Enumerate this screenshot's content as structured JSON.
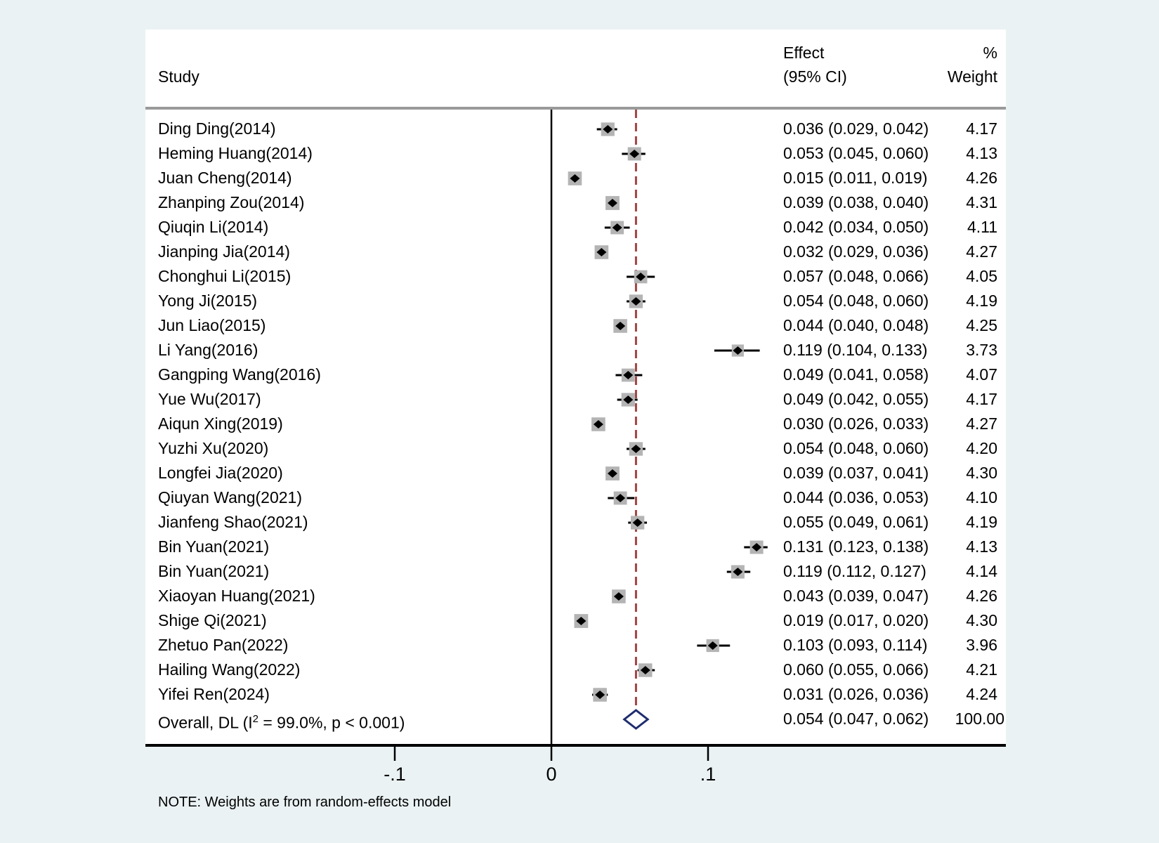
{
  "page": {
    "background": "#eaf2f3",
    "panel_background": "#ffffff"
  },
  "header": {
    "study": "Study",
    "effect_line1": "Effect",
    "effect_line2": "(95% CI)",
    "percent": "%",
    "weight": "Weight"
  },
  "note": "NOTE: Weights are from random-effects model",
  "chart_data": {
    "type": "forest",
    "title": "",
    "xlabel": "",
    "xlim": [
      -0.26,
      0.29
    ],
    "zero_line_value": 0,
    "reference_dashed_value": 0.054,
    "axis_ticks": [
      {
        "label": "-.1",
        "value": -0.1
      },
      {
        "label": "0",
        "value": 0
      },
      {
        "label": ".1",
        "value": 0.1
      }
    ],
    "colors": {
      "marker": "#000000",
      "weight_box": "#b4b4b4",
      "ci_line": "#000000",
      "dashed_line": "#a04545",
      "overall_diamond": "#1f2d6e",
      "axis": "#000000",
      "header_rule": "#9a9a9a",
      "text": "#000000"
    },
    "studies": [
      {
        "label": "Ding Ding(2014)",
        "effect": 0.036,
        "ci_lower": 0.029,
        "ci_upper": 0.042,
        "effect_label": "0.036 (0.029, 0.042)",
        "weight": 4.17,
        "weight_label": "4.17"
      },
      {
        "label": "Heming Huang(2014)",
        "effect": 0.053,
        "ci_lower": 0.045,
        "ci_upper": 0.06,
        "effect_label": "0.053 (0.045, 0.060)",
        "weight": 4.13,
        "weight_label": "4.13"
      },
      {
        "label": "Juan Cheng(2014)",
        "effect": 0.015,
        "ci_lower": 0.011,
        "ci_upper": 0.019,
        "effect_label": "0.015 (0.011, 0.019)",
        "weight": 4.26,
        "weight_label": "4.26"
      },
      {
        "label": "Zhanping Zou(2014)",
        "effect": 0.039,
        "ci_lower": 0.038,
        "ci_upper": 0.04,
        "effect_label": "0.039 (0.038, 0.040)",
        "weight": 4.31,
        "weight_label": "4.31"
      },
      {
        "label": "Qiuqin Li(2014)",
        "effect": 0.042,
        "ci_lower": 0.034,
        "ci_upper": 0.05,
        "effect_label": "0.042 (0.034, 0.050)",
        "weight": 4.11,
        "weight_label": "4.11"
      },
      {
        "label": "Jianping Jia(2014)",
        "effect": 0.032,
        "ci_lower": 0.029,
        "ci_upper": 0.036,
        "effect_label": "0.032 (0.029, 0.036)",
        "weight": 4.27,
        "weight_label": "4.27"
      },
      {
        "label": "Chonghui Li(2015)",
        "effect": 0.057,
        "ci_lower": 0.048,
        "ci_upper": 0.066,
        "effect_label": "0.057 (0.048, 0.066)",
        "weight": 4.05,
        "weight_label": "4.05"
      },
      {
        "label": "Yong Ji(2015)",
        "effect": 0.054,
        "ci_lower": 0.048,
        "ci_upper": 0.06,
        "effect_label": "0.054 (0.048, 0.060)",
        "weight": 4.19,
        "weight_label": "4.19"
      },
      {
        "label": "Jun Liao(2015)",
        "effect": 0.044,
        "ci_lower": 0.04,
        "ci_upper": 0.048,
        "effect_label": "0.044 (0.040, 0.048)",
        "weight": 4.25,
        "weight_label": "4.25"
      },
      {
        "label": "Li Yang(2016)",
        "effect": 0.119,
        "ci_lower": 0.104,
        "ci_upper": 0.133,
        "effect_label": "0.119 (0.104, 0.133)",
        "weight": 3.73,
        "weight_label": "3.73"
      },
      {
        "label": "Gangping Wang(2016)",
        "effect": 0.049,
        "ci_lower": 0.041,
        "ci_upper": 0.058,
        "effect_label": "0.049 (0.041, 0.058)",
        "weight": 4.07,
        "weight_label": "4.07"
      },
      {
        "label": "Yue Wu(2017)",
        "effect": 0.049,
        "ci_lower": 0.042,
        "ci_upper": 0.055,
        "effect_label": "0.049 (0.042, 0.055)",
        "weight": 4.17,
        "weight_label": "4.17"
      },
      {
        "label": "Aiqun Xing(2019)",
        "effect": 0.03,
        "ci_lower": 0.026,
        "ci_upper": 0.033,
        "effect_label": "0.030 (0.026, 0.033)",
        "weight": 4.27,
        "weight_label": "4.27"
      },
      {
        "label": "Yuzhi Xu(2020)",
        "effect": 0.054,
        "ci_lower": 0.048,
        "ci_upper": 0.06,
        "effect_label": "0.054 (0.048, 0.060)",
        "weight": 4.2,
        "weight_label": "4.20"
      },
      {
        "label": "Longfei Jia(2020)",
        "effect": 0.039,
        "ci_lower": 0.037,
        "ci_upper": 0.041,
        "effect_label": "0.039 (0.037, 0.041)",
        "weight": 4.3,
        "weight_label": "4.30"
      },
      {
        "label": "Qiuyan Wang(2021)",
        "effect": 0.044,
        "ci_lower": 0.036,
        "ci_upper": 0.053,
        "effect_label": "0.044 (0.036, 0.053)",
        "weight": 4.1,
        "weight_label": "4.10"
      },
      {
        "label": "Jianfeng Shao(2021)",
        "effect": 0.055,
        "ci_lower": 0.049,
        "ci_upper": 0.061,
        "effect_label": "0.055 (0.049, 0.061)",
        "weight": 4.19,
        "weight_label": "4.19"
      },
      {
        "label": "Bin Yuan(2021)",
        "effect": 0.131,
        "ci_lower": 0.123,
        "ci_upper": 0.138,
        "effect_label": "0.131 (0.123, 0.138)",
        "weight": 4.13,
        "weight_label": "4.13"
      },
      {
        "label": "Bin Yuan(2021)",
        "effect": 0.119,
        "ci_lower": 0.112,
        "ci_upper": 0.127,
        "effect_label": "0.119 (0.112, 0.127)",
        "weight": 4.14,
        "weight_label": "4.14"
      },
      {
        "label": "Xiaoyan Huang(2021)",
        "effect": 0.043,
        "ci_lower": 0.039,
        "ci_upper": 0.047,
        "effect_label": "0.043 (0.039, 0.047)",
        "weight": 4.26,
        "weight_label": "4.26"
      },
      {
        "label": "Shige Qi(2021)",
        "effect": 0.019,
        "ci_lower": 0.017,
        "ci_upper": 0.02,
        "effect_label": "0.019 (0.017, 0.020)",
        "weight": 4.3,
        "weight_label": "4.30"
      },
      {
        "label": "Zhetuo Pan(2022)",
        "effect": 0.103,
        "ci_lower": 0.093,
        "ci_upper": 0.114,
        "effect_label": "0.103 (0.093, 0.114)",
        "weight": 3.96,
        "weight_label": "3.96"
      },
      {
        "label": "Hailing Wang(2022)",
        "effect": 0.06,
        "ci_lower": 0.055,
        "ci_upper": 0.066,
        "effect_label": "0.060 (0.055, 0.066)",
        "weight": 4.21,
        "weight_label": "4.21"
      },
      {
        "label": "Yifei Ren(2024)",
        "effect": 0.031,
        "ci_lower": 0.026,
        "ci_upper": 0.036,
        "effect_label": "0.031 (0.026, 0.036)",
        "weight": 4.24,
        "weight_label": "4.24"
      }
    ],
    "overall": {
      "label_pre": "Overall, DL (I",
      "label_sup": "2",
      "label_post": " = 99.0%, p < 0.001)",
      "effect": 0.054,
      "ci_lower": 0.047,
      "ci_upper": 0.062,
      "effect_label": "0.054 (0.047, 0.062)",
      "weight": 100.0,
      "weight_label": "100.00"
    }
  }
}
